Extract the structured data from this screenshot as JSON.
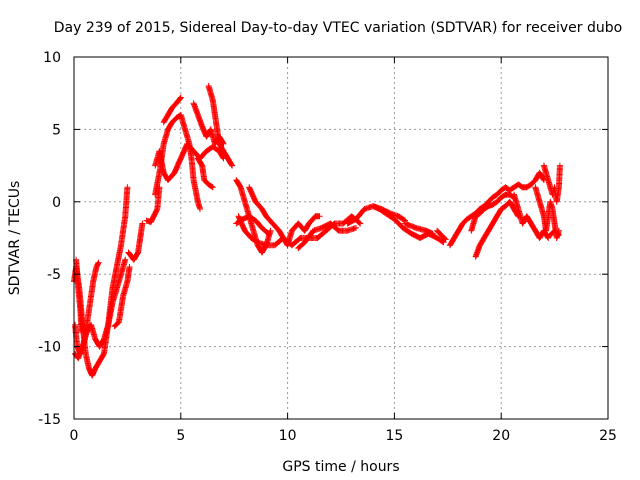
{
  "chart_data": {
    "type": "scatter",
    "title": "Day 239 of 2015, Sidereal Day-to-day VTEC variation (SDTVAR) for receiver dubo",
    "xlabel": "GPS time / hours",
    "ylabel": "SDTVAR / TECUs",
    "xlim": [
      0,
      25
    ],
    "ylim": [
      -15,
      10
    ],
    "xticks": [
      0,
      5,
      10,
      15,
      20,
      25
    ],
    "yticks": [
      -15,
      -10,
      -5,
      0,
      5,
      10
    ],
    "grid": true,
    "marker": "+",
    "color": "#ff0000",
    "series": [
      {
        "name": "SDTVAR",
        "trajectories": [
          [
            [
              0.0,
              -5.5
            ],
            [
              0.1,
              -4.5
            ],
            [
              0.25,
              -6.0
            ],
            [
              0.4,
              -8.5
            ],
            [
              0.55,
              -10.5
            ],
            [
              0.7,
              -11.5
            ],
            [
              0.85,
              -12.0
            ],
            [
              1.0,
              -11.5
            ],
            [
              1.2,
              -11.0
            ],
            [
              1.4,
              -10.5
            ],
            [
              1.6,
              -8.5
            ],
            [
              1.8,
              -6.0
            ],
            [
              2.0,
              -4.5
            ],
            [
              2.2,
              -3.0
            ],
            [
              2.4,
              -1.0
            ],
            [
              2.5,
              1.0
            ]
          ],
          [
            [
              0.05,
              -8.5
            ],
            [
              0.15,
              -10.0
            ],
            [
              0.3,
              -10.5
            ],
            [
              0.5,
              -9.5
            ],
            [
              0.7,
              -7.5
            ],
            [
              0.9,
              -5.5
            ],
            [
              1.05,
              -4.5
            ],
            [
              1.15,
              -4.2
            ]
          ],
          [
            [
              0.05,
              -10.5
            ],
            [
              0.2,
              -10.8
            ],
            [
              0.4,
              -10.0
            ],
            [
              0.6,
              -9.0
            ],
            [
              0.8,
              -8.5
            ],
            [
              1.0,
              -9.5
            ],
            [
              1.2,
              -10.0
            ],
            [
              1.4,
              -9.5
            ],
            [
              1.6,
              -8.5
            ],
            [
              1.8,
              -7.0
            ],
            [
              2.0,
              -6.0
            ],
            [
              2.2,
              -5.0
            ],
            [
              2.4,
              -4.0
            ]
          ],
          [
            [
              0.1,
              -4.0
            ],
            [
              0.2,
              -6.0
            ],
            [
              0.3,
              -7.5
            ],
            [
              0.35,
              -9.0
            ]
          ],
          [
            [
              1.9,
              -8.6
            ],
            [
              2.1,
              -8.3
            ],
            [
              2.3,
              -6.5
            ],
            [
              2.5,
              -5.5
            ],
            [
              2.6,
              -4.5
            ]
          ],
          [
            [
              2.55,
              -3.5
            ],
            [
              2.8,
              -4.0
            ],
            [
              3.0,
              -3.5
            ],
            [
              3.1,
              -2.5
            ],
            [
              3.2,
              -1.5
            ]
          ],
          [
            [
              3.4,
              -1.3
            ],
            [
              3.6,
              -1.4
            ],
            [
              3.9,
              -0.5
            ],
            [
              4.0,
              1.0
            ]
          ],
          [
            [
              3.8,
              2.5
            ],
            [
              4.0,
              3.5
            ],
            [
              4.2,
              2.0
            ],
            [
              4.4,
              1.5
            ],
            [
              4.7,
              2.0
            ],
            [
              5.0,
              3.0
            ],
            [
              5.3,
              4.0
            ],
            [
              5.6,
              3.5
            ],
            [
              5.9,
              3.0
            ],
            [
              6.2,
              3.5
            ],
            [
              6.5,
              3.8
            ],
            [
              6.8,
              3.5
            ],
            [
              7.0,
              3.0
            ]
          ],
          [
            [
              3.8,
              0.5
            ],
            [
              4.0,
              2.0
            ],
            [
              4.2,
              4.0
            ],
            [
              4.4,
              5.0
            ],
            [
              4.6,
              5.5
            ],
            [
              4.8,
              5.8
            ],
            [
              5.0,
              6.0
            ],
            [
              5.2,
              5.0
            ],
            [
              5.4,
              4.0
            ],
            [
              5.5,
              3.0
            ],
            [
              5.6,
              1.5
            ],
            [
              5.8,
              0.0
            ],
            [
              5.9,
              -0.5
            ]
          ],
          [
            [
              4.2,
              5.5
            ],
            [
              4.4,
              6.0
            ],
            [
              4.6,
              6.5
            ],
            [
              4.9,
              7.0
            ],
            [
              5.0,
              7.2
            ]
          ],
          [
            [
              5.6,
              6.8
            ],
            [
              5.8,
              6.0
            ],
            [
              6.0,
              5.2
            ],
            [
              6.2,
              4.5
            ],
            [
              6.4,
              5.0
            ],
            [
              6.6,
              4.0
            ],
            [
              6.8,
              4.5
            ],
            [
              7.0,
              4.0
            ]
          ],
          [
            [
              6.3,
              8.0
            ],
            [
              6.5,
              7.0
            ],
            [
              6.6,
              6.0
            ],
            [
              6.7,
              5.0
            ],
            [
              6.8,
              4.0
            ],
            [
              7.0,
              3.5
            ],
            [
              7.2,
              3.0
            ],
            [
              7.4,
              2.5
            ]
          ],
          [
            [
              5.8,
              3.0
            ],
            [
              6.0,
              2.5
            ],
            [
              6.1,
              1.5
            ],
            [
              6.3,
              1.2
            ],
            [
              6.5,
              1.0
            ]
          ],
          [
            [
              7.6,
              1.5
            ],
            [
              7.8,
              1.0
            ],
            [
              8.0,
              0.0
            ],
            [
              8.2,
              -1.0
            ],
            [
              8.4,
              -2.0
            ],
            [
              8.6,
              -3.0
            ],
            [
              8.8,
              -3.5
            ],
            [
              9.0,
              -3.0
            ],
            [
              9.2,
              -2.0
            ]
          ],
          [
            [
              8.2,
              1.0
            ],
            [
              8.5,
              0.0
            ],
            [
              8.8,
              -0.5
            ],
            [
              9.0,
              -1.0
            ],
            [
              9.3,
              -1.5
            ],
            [
              9.6,
              -2.0
            ],
            [
              9.8,
              -2.5
            ],
            [
              10.0,
              -3.0
            ],
            [
              10.2,
              -2.0
            ],
            [
              10.5,
              -1.5
            ],
            [
              10.8,
              -2.0
            ],
            [
              11.0,
              -1.5
            ],
            [
              11.3,
              -1.0
            ],
            [
              11.5,
              -1.0
            ]
          ],
          [
            [
              7.7,
              -1.0
            ],
            [
              8.0,
              -2.0
            ],
            [
              8.3,
              -2.5
            ],
            [
              8.6,
              -2.8
            ],
            [
              9.0,
              -3.0
            ],
            [
              9.4,
              -3.0
            ],
            [
              9.8,
              -2.5
            ],
            [
              10.2,
              -3.0
            ],
            [
              10.6,
              -2.5
            ],
            [
              11.0,
              -2.5
            ],
            [
              11.4,
              -2.5
            ],
            [
              11.8,
              -2.0
            ],
            [
              12.2,
              -1.5
            ],
            [
              12.6,
              -1.5
            ],
            [
              13.0,
              -1.0
            ],
            [
              13.4,
              -1.5
            ]
          ],
          [
            [
              7.6,
              -1.5
            ],
            [
              7.9,
              -1.2
            ],
            [
              8.2,
              -1.0
            ],
            [
              8.5,
              -1.3
            ],
            [
              8.8,
              -1.8
            ],
            [
              9.1,
              -2.2
            ]
          ],
          [
            [
              10.5,
              -3.2
            ],
            [
              10.8,
              -2.8
            ],
            [
              11.2,
              -2.0
            ],
            [
              11.6,
              -1.8
            ],
            [
              12.0,
              -1.5
            ],
            [
              12.4,
              -2.0
            ],
            [
              12.8,
              -2.0
            ],
            [
              13.2,
              -1.8
            ]
          ],
          [
            [
              12.8,
              -1.5
            ],
            [
              13.2,
              -1.2
            ],
            [
              13.6,
              -0.5
            ],
            [
              14.0,
              -0.3
            ],
            [
              14.4,
              -0.5
            ],
            [
              14.8,
              -0.8
            ],
            [
              15.2,
              -1.0
            ],
            [
              15.5,
              -1.3
            ]
          ],
          [
            [
              14.0,
              -0.3
            ],
            [
              14.3,
              -0.5
            ],
            [
              14.6,
              -0.8
            ],
            [
              15.0,
              -1.2
            ],
            [
              15.4,
              -1.8
            ],
            [
              15.8,
              -2.2
            ],
            [
              16.2,
              -2.5
            ],
            [
              16.6,
              -2.2
            ],
            [
              17.0,
              -2.5
            ],
            [
              17.3,
              -2.8
            ]
          ],
          [
            [
              15.5,
              -1.5
            ],
            [
              16.0,
              -1.8
            ],
            [
              16.5,
              -2.0
            ],
            [
              16.8,
              -2.2
            ]
          ],
          [
            [
              17.0,
              -2.0
            ],
            [
              17.2,
              -2.3
            ],
            [
              17.4,
              -2.6
            ]
          ],
          [
            [
              17.6,
              -3.0
            ],
            [
              17.8,
              -2.5
            ],
            [
              18.0,
              -2.0
            ],
            [
              18.2,
              -1.5
            ],
            [
              18.4,
              -1.2
            ],
            [
              18.6,
              -1.0
            ],
            [
              18.8,
              -0.8
            ],
            [
              19.0,
              -0.5
            ],
            [
              19.2,
              -0.3
            ],
            [
              19.4,
              0.0
            ],
            [
              19.6,
              0.3
            ],
            [
              19.8,
              0.5
            ],
            [
              20.0,
              0.8
            ],
            [
              20.2,
              1.0
            ],
            [
              20.4,
              0.8
            ],
            [
              20.6,
              1.0
            ],
            [
              20.8,
              1.2
            ],
            [
              21.0,
              1.0
            ],
            [
              21.2,
              1.0
            ],
            [
              21.4,
              1.2
            ],
            [
              21.6,
              1.5
            ],
            [
              21.8,
              2.0
            ],
            [
              22.0,
              1.5
            ]
          ],
          [
            [
              18.6,
              -2.0
            ],
            [
              18.8,
              -1.0
            ],
            [
              19.0,
              -0.8
            ],
            [
              19.2,
              -0.5
            ],
            [
              19.4,
              -0.3
            ],
            [
              19.6,
              -0.2
            ],
            [
              19.8,
              0.0
            ],
            [
              20.0,
              0.3
            ],
            [
              20.2,
              0.5
            ],
            [
              20.4,
              0.5
            ],
            [
              20.6,
              0.3
            ]
          ],
          [
            [
              18.8,
              -3.8
            ],
            [
              19.0,
              -3.0
            ],
            [
              19.2,
              -2.5
            ],
            [
              19.4,
              -2.0
            ],
            [
              19.6,
              -1.5
            ],
            [
              19.8,
              -1.0
            ],
            [
              20.0,
              -0.5
            ],
            [
              20.2,
              -0.3
            ],
            [
              20.4,
              0.0
            ],
            [
              20.6,
              -0.5
            ],
            [
              20.8,
              -1.0
            ]
          ],
          [
            [
              20.6,
              0.5
            ],
            [
              20.8,
              -0.5
            ],
            [
              21.0,
              -1.5
            ],
            [
              21.2,
              -1.0
            ],
            [
              21.4,
              -1.5
            ],
            [
              21.6,
              -2.0
            ],
            [
              21.8,
              -2.5
            ],
            [
              22.0,
              -2.0
            ],
            [
              22.2,
              -2.5
            ]
          ],
          [
            [
              21.6,
              1.0
            ],
            [
              21.8,
              0.0
            ],
            [
              22.0,
              -1.0
            ],
            [
              22.1,
              -2.0
            ],
            [
              22.2,
              -1.0
            ],
            [
              22.3,
              0.0
            ],
            [
              22.4,
              -0.5
            ],
            [
              22.5,
              -1.5
            ],
            [
              22.6,
              -2.5
            ],
            [
              22.7,
              -2.0
            ]
          ],
          [
            [
              22.0,
              2.5
            ],
            [
              22.2,
              1.5
            ],
            [
              22.4,
              0.5
            ],
            [
              22.5,
              1.0
            ],
            [
              22.6,
              0.0
            ],
            [
              22.7,
              1.0
            ],
            [
              22.75,
              2.5
            ]
          ],
          [
            [
              22.3,
              -2.3
            ],
            [
              22.5,
              -2.0
            ],
            [
              22.7,
              -2.3
            ]
          ]
        ]
      }
    ]
  }
}
